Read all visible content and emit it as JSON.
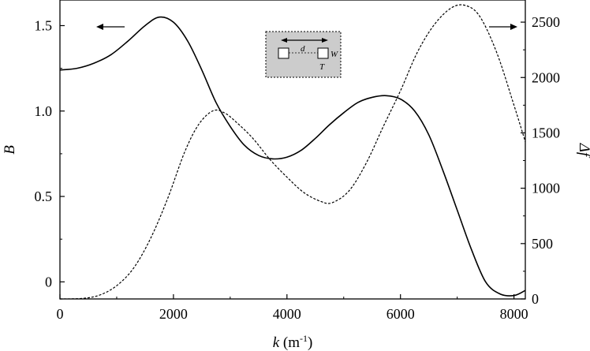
{
  "chart_data": {
    "type": "line",
    "xlabel_symbol": "k",
    "xlabel_unit": " (m",
    "xlabel_exponent": "-1",
    "xlabel_close": ")",
    "ylabel_left": "B",
    "ylabel_right": "Δf",
    "xlim": [
      0,
      8200
    ],
    "ylim_left": [
      -0.1,
      1.65
    ],
    "ylim_right": [
      0,
      2700
    ],
    "x_ticks": [
      "0",
      "2000",
      "4000",
      "6000",
      "8000"
    ],
    "y_left_ticks": [
      "0",
      "0.5",
      "1.0",
      "1.5"
    ],
    "y_right_ticks": [
      "0",
      "500",
      "1000",
      "1500",
      "2000",
      "2500"
    ],
    "legend": "none",
    "grid": false,
    "arrows": {
      "left_series_arrow": "points-left",
      "right_series_arrow": "points-right"
    },
    "inset": {
      "d_label": "d",
      "w_label": "W",
      "t_label": "T",
      "fill": "#cccccc"
    },
    "series": [
      {
        "axis": "left",
        "style": "solid",
        "points": [
          [
            0,
            1.24
          ],
          [
            300,
            1.25
          ],
          [
            600,
            1.28
          ],
          [
            900,
            1.33
          ],
          [
            1200,
            1.41
          ],
          [
            1500,
            1.5
          ],
          [
            1750,
            1.55
          ],
          [
            2000,
            1.52
          ],
          [
            2250,
            1.41
          ],
          [
            2500,
            1.24
          ],
          [
            2750,
            1.05
          ],
          [
            3000,
            0.91
          ],
          [
            3250,
            0.8
          ],
          [
            3500,
            0.74
          ],
          [
            3750,
            0.72
          ],
          [
            4000,
            0.73
          ],
          [
            4250,
            0.77
          ],
          [
            4500,
            0.84
          ],
          [
            4750,
            0.92
          ],
          [
            5000,
            0.99
          ],
          [
            5250,
            1.05
          ],
          [
            5500,
            1.08
          ],
          [
            5750,
            1.09
          ],
          [
            6000,
            1.07
          ],
          [
            6250,
            1.0
          ],
          [
            6500,
            0.86
          ],
          [
            6750,
            0.65
          ],
          [
            7000,
            0.42
          ],
          [
            7250,
            0.19
          ],
          [
            7500,
            0.0
          ],
          [
            7750,
            -0.07
          ],
          [
            8000,
            -0.08
          ],
          [
            8200,
            -0.05
          ]
        ]
      },
      {
        "axis": "right",
        "style": "dashed",
        "points": [
          [
            0,
            0
          ],
          [
            400,
            5
          ],
          [
            700,
            35
          ],
          [
            1000,
            120
          ],
          [
            1300,
            280
          ],
          [
            1600,
            550
          ],
          [
            1900,
            910
          ],
          [
            2200,
            1330
          ],
          [
            2450,
            1580
          ],
          [
            2700,
            1700
          ],
          [
            2900,
            1680
          ],
          [
            3100,
            1600
          ],
          [
            3400,
            1450
          ],
          [
            3700,
            1260
          ],
          [
            4000,
            1100
          ],
          [
            4300,
            960
          ],
          [
            4600,
            880
          ],
          [
            4800,
            870
          ],
          [
            5100,
            980
          ],
          [
            5400,
            1230
          ],
          [
            5700,
            1560
          ],
          [
            6000,
            1880
          ],
          [
            6300,
            2230
          ],
          [
            6600,
            2480
          ],
          [
            6900,
            2630
          ],
          [
            7150,
            2650
          ],
          [
            7400,
            2550
          ],
          [
            7700,
            2220
          ],
          [
            8000,
            1750
          ],
          [
            8200,
            1420
          ]
        ]
      }
    ]
  }
}
